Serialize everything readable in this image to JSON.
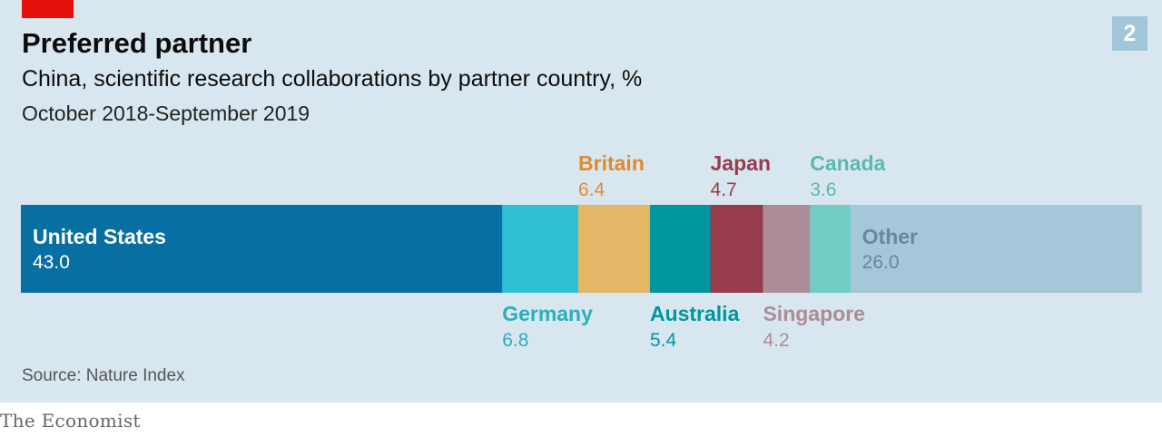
{
  "header": {
    "title": "Preferred partner",
    "subtitle": "China, scientific research collaborations by partner country, %",
    "period": "October 2018-September 2019",
    "chart_number": "2"
  },
  "footer": {
    "source": "Source: Nature Index",
    "logo": "The Economist"
  },
  "colors": {
    "background": "#d8e7ef",
    "brand_red": "#e3120b"
  },
  "chart_data": {
    "type": "bar",
    "orientation": "horizontal-stacked",
    "title": "Preferred partner",
    "subtitle": "China, scientific research collaborations by partner country, %",
    "unit": "%",
    "xlim": [
      0,
      100
    ],
    "grid": false,
    "legend": "none",
    "series": [
      {
        "name": "United States",
        "value": 43.0,
        "label": "43.0",
        "color": "#076fa2",
        "label_position": "inside",
        "label_color": "#ffffff"
      },
      {
        "name": "Germany",
        "value": 6.8,
        "label": "6.8",
        "color": "#2fc1d3",
        "label_position": "below",
        "label_color": "#2aaec0"
      },
      {
        "name": "Britain",
        "value": 6.4,
        "label": "6.4",
        "color": "#e3b766",
        "label_position": "above",
        "label_color": "#e08a30"
      },
      {
        "name": "Australia",
        "value": 5.4,
        "label": "5.4",
        "color": "#00969e",
        "label_position": "below",
        "label_color": "#00969e"
      },
      {
        "name": "Japan",
        "value": 4.7,
        "label": "4.7",
        "color": "#963c4c",
        "label_position": "above",
        "label_color": "#963c4c"
      },
      {
        "name": "Singapore",
        "value": 4.2,
        "label": "4.2",
        "color": "#ad8d95",
        "label_position": "below",
        "label_color": "#ad8d95"
      },
      {
        "name": "Canada",
        "value": 3.6,
        "label": "3.6",
        "color": "#6fcdc5",
        "label_position": "above",
        "label_color": "#5ab8af"
      },
      {
        "name": "Other",
        "value": 26.0,
        "label": "26.0",
        "color": "#a4c8da",
        "label_position": "inside",
        "label_color": "#6b8799"
      }
    ]
  }
}
